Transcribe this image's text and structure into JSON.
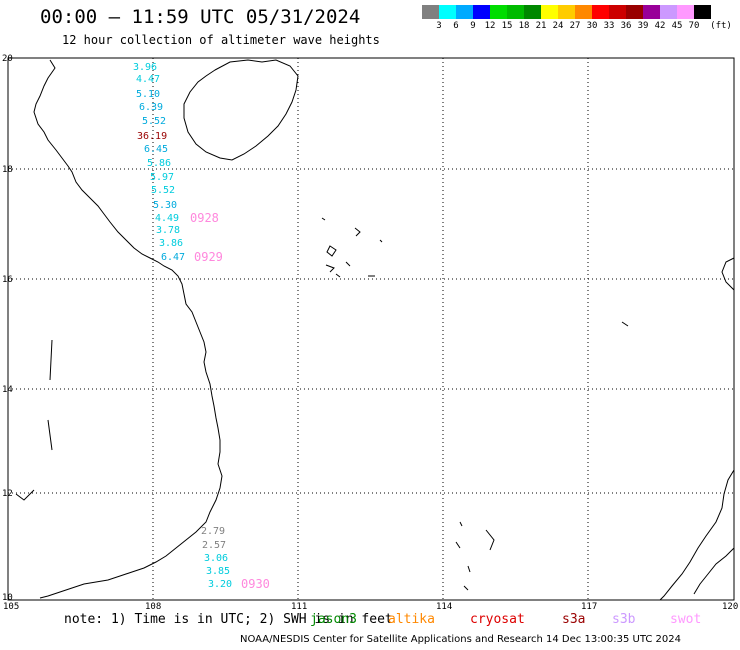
{
  "header": {
    "title": "00:00 – 11:59 UTC 05/31/2024",
    "subtitle": "12 hour collection of altimeter wave heights"
  },
  "colorbar": {
    "unit": "(ft)",
    "ticks": [
      "3",
      "6",
      "9",
      "12",
      "15",
      "18",
      "21",
      "24",
      "27",
      "30",
      "33",
      "36",
      "39",
      "42",
      "45",
      "70"
    ],
    "colors": [
      "#808080",
      "#00ffff",
      "#00aaff",
      "#0000ff",
      "#00dd00",
      "#00bb00",
      "#008800",
      "#ffff00",
      "#ffcc00",
      "#ff8800",
      "#ff0000",
      "#cc0000",
      "#990000",
      "#990099",
      "#cc99ff",
      "#ff99ff",
      "#000000"
    ]
  },
  "map": {
    "lon_labels": [
      "105",
      "108",
      "111",
      "114",
      "117",
      "120"
    ],
    "lat_labels": [
      "20",
      "18",
      "16",
      "14",
      "12",
      "10"
    ],
    "track_labels": [
      {
        "text": "0928",
        "color": "#ff88dd"
      },
      {
        "text": "0929",
        "color": "#ff88dd"
      },
      {
        "text": "0930",
        "color": "#ff88dd"
      }
    ],
    "wave_heights": [
      {
        "value": "3.96",
        "color": "#00ccdd"
      },
      {
        "value": "4.47",
        "color": "#00ccdd"
      },
      {
        "value": "5.10",
        "color": "#00aadd"
      },
      {
        "value": "6.39",
        "color": "#00aadd"
      },
      {
        "value": "5.52",
        "color": "#00aadd"
      },
      {
        "value": "36.19",
        "color": "#990000"
      },
      {
        "value": "6.45",
        "color": "#00aadd"
      },
      {
        "value": "5.86",
        "color": "#00ccdd"
      },
      {
        "value": "5.97",
        "color": "#00ccdd"
      },
      {
        "value": "5.52",
        "color": "#00ccdd"
      },
      {
        "value": "5.30",
        "color": "#00aadd"
      },
      {
        "value": "4.49",
        "color": "#00ccdd"
      },
      {
        "value": "3.78",
        "color": "#00ccdd"
      },
      {
        "value": "3.86",
        "color": "#00ccdd"
      },
      {
        "value": "6.47",
        "color": "#00aadd"
      },
      {
        "value": "2.79",
        "color": "#808080"
      },
      {
        "value": "2.57",
        "color": "#808080"
      },
      {
        "value": "3.06",
        "color": "#00ccdd"
      },
      {
        "value": "3.85",
        "color": "#00ccdd"
      },
      {
        "value": "3.20",
        "color": "#00ccdd"
      }
    ]
  },
  "footer": {
    "note": "note: 1) Time is in UTC; 2) SWH is in feet",
    "legend": [
      {
        "label": "jason3",
        "color": "#008800"
      },
      {
        "label": "altika",
        "color": "#ff8800"
      },
      {
        "label": "cryosat",
        "color": "#dd0000"
      },
      {
        "label": "s3a",
        "color": "#990000"
      },
      {
        "label": "s3b",
        "color": "#cc99ff"
      },
      {
        "label": "swot",
        "color": "#ff99ff"
      }
    ],
    "credit": "NOAA/NESDIS Center for Satellite Applications and Research    14 Dec 13:00:35 UTC 2024"
  }
}
